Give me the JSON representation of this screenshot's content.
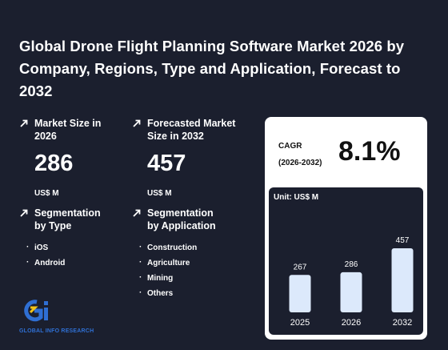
{
  "report": {
    "title": "Global Drone Flight Planning Software Market 2026 by Company, Regions, Type and Application, Forecast to 2032"
  },
  "stats": {
    "market_size": {
      "label": "Market Size in 2026",
      "value": "286",
      "unit": "US$ M"
    },
    "forecast": {
      "label": "Forecasted Market Size in 2032",
      "value": "457",
      "unit": "US$ M"
    }
  },
  "segmentation": {
    "type": {
      "label": "Segmentation by Type",
      "items": [
        "iOS",
        "Android"
      ]
    },
    "application": {
      "label": "Segmentation by Application",
      "items": [
        "Construction",
        "Agriculture",
        "Mining",
        "Others"
      ]
    }
  },
  "cagr": {
    "label_line1": "CAGR",
    "label_line2": "(2026-2032)",
    "value": "8.1%"
  },
  "logo": {
    "text": "GLOBAL INFO RESEARCH"
  },
  "chart_data": {
    "type": "bar",
    "ylabel": "Unit: US$ M",
    "categories": [
      "2025",
      "2026",
      "2032"
    ],
    "values": [
      267,
      286,
      457
    ],
    "bar_color": "#dce9fb"
  },
  "colors": {
    "background": "#1b1f2e",
    "card": "#ffffff",
    "logo_blue": "#2f6fd3",
    "logo_yellow": "#f2c318"
  }
}
